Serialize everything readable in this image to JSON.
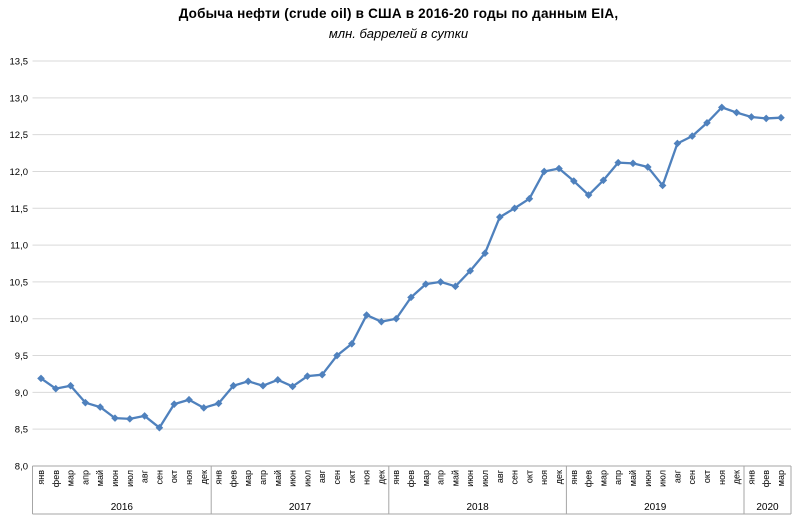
{
  "chart": {
    "title": "Добыча нефти (crude oil) в США в 2016-20 годы по данным EIA,",
    "subtitle": "млн. баррелей в сутки"
  },
  "chart_data": {
    "type": "line",
    "title": "Добыча нефти (crude oil) в США в 2016-20 годы по данным EIA,",
    "subtitle": "млн. баррелей в сутки",
    "ylabel": "",
    "xlabel": "",
    "ylim": [
      8.0,
      13.5
    ],
    "ytick_step": 0.5,
    "ytick_labels": [
      "8,0",
      "8,5",
      "9,0",
      "9,5",
      "10,0",
      "10,5",
      "11,0",
      "11,5",
      "12,0",
      "12,5",
      "13,0",
      "13,5"
    ],
    "decimal_separator": ",",
    "grid": "horizontal-only",
    "legend_position": "none",
    "marker": "diamond",
    "series_color": "#4F81BD",
    "gridline_color": "#D9D9D9",
    "axis_line_color": "#A6A6A6",
    "text_color": "#000000",
    "years": [
      {
        "year": "2016",
        "months": [
          "янв",
          "фев",
          "мар",
          "апр",
          "май",
          "июн",
          "июл",
          "авг",
          "сен",
          "окт",
          "ноя",
          "дек"
        ],
        "values": [
          9.19,
          9.05,
          9.09,
          8.86,
          8.8,
          8.65,
          8.64,
          8.68,
          8.52,
          8.84,
          8.9,
          8.79
        ]
      },
      {
        "year": "2017",
        "months": [
          "янв",
          "фев",
          "мар",
          "апр",
          "май",
          "июн",
          "июл",
          "авг",
          "сен",
          "окт",
          "ноя",
          "дек"
        ],
        "values": [
          8.85,
          9.09,
          9.15,
          9.09,
          9.17,
          9.08,
          9.22,
          9.24,
          9.5,
          9.66,
          10.05,
          9.96
        ]
      },
      {
        "year": "2018",
        "months": [
          "янв",
          "фев",
          "мар",
          "апр",
          "май",
          "июн",
          "июл",
          "авг",
          "сен",
          "окт",
          "ноя",
          "дек"
        ],
        "values": [
          10.0,
          10.29,
          10.47,
          10.5,
          10.44,
          10.65,
          10.89,
          11.38,
          11.5,
          11.63,
          12.0,
          12.04
        ]
      },
      {
        "year": "2019",
        "months": [
          "янв",
          "фев",
          "мар",
          "апр",
          "май",
          "июн",
          "июл",
          "авг",
          "сен",
          "окт",
          "ноя",
          "дек"
        ],
        "values": [
          11.87,
          11.68,
          11.88,
          12.12,
          12.11,
          12.06,
          11.81,
          12.38,
          12.48,
          12.66,
          12.87,
          12.8
        ]
      },
      {
        "year": "2020",
        "months": [
          "янв",
          "фев",
          "мар"
        ],
        "values": [
          12.74,
          12.72,
          12.73
        ]
      }
    ]
  }
}
